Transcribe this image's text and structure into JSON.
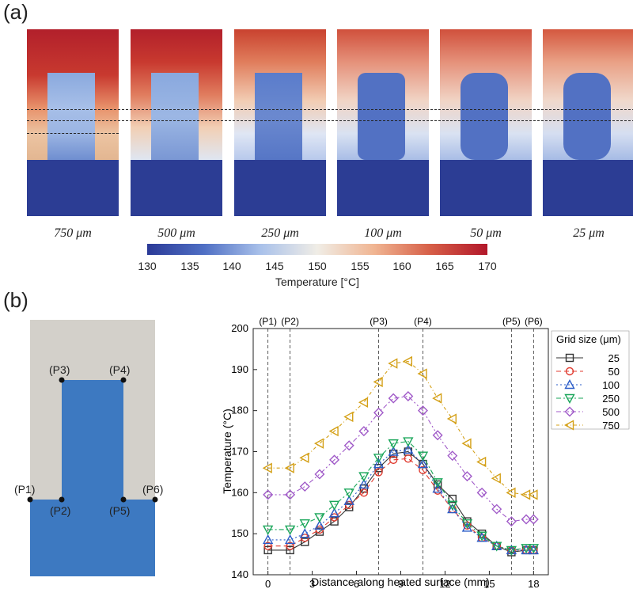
{
  "panel_a": {
    "label": "(a)",
    "grid_labels": [
      "750 μm",
      "500 μm",
      "250 μm",
      "100 μm",
      "50 μm",
      "25 μm"
    ],
    "colorbar": {
      "ticks": [
        "130",
        "135",
        "140",
        "145",
        "150",
        "155",
        "160",
        "165",
        "170"
      ],
      "title": "Temperature [°C]"
    }
  },
  "panel_b": {
    "label": "(b)",
    "points": [
      "(P1)",
      "(P2)",
      "(P3)",
      "(P4)",
      "(P5)",
      "(P6)"
    ]
  },
  "chart_data": {
    "type": "line",
    "xlabel": "Distance along heated surface (mm)",
    "ylabel": "Temperature (°C)",
    "xlim": [
      -1,
      19
    ],
    "ylim": [
      140,
      200
    ],
    "xticks": [
      0,
      3,
      6,
      9,
      12,
      15,
      18
    ],
    "yticks": [
      140,
      150,
      160,
      170,
      180,
      190,
      200
    ],
    "point_positions": [
      {
        "label": "(P1)",
        "x": 0
      },
      {
        "label": "(P2)",
        "x": 1.5
      },
      {
        "label": "(P3)",
        "x": 7.5
      },
      {
        "label": "(P4)",
        "x": 10.5
      },
      {
        "label": "(P5)",
        "x": 16.5
      },
      {
        "label": "(P6)",
        "x": 18
      }
    ],
    "legend_title": "Grid size (μm)",
    "legend_position": "top-right",
    "x": [
      0,
      1.5,
      2.5,
      3.5,
      4.5,
      5.5,
      6.5,
      7.5,
      8.5,
      9.5,
      10.5,
      11.5,
      12.5,
      13.5,
      14.5,
      15.5,
      16.5,
      17.5,
      18
    ],
    "series": [
      {
        "name": "25",
        "color": "#333333",
        "marker": "square",
        "dash": "none",
        "values": [
          146,
          146,
          148,
          150.5,
          153,
          156.5,
          161,
          166,
          169.5,
          170,
          167,
          162,
          158.5,
          153,
          150,
          147,
          145.5,
          146,
          146
        ]
      },
      {
        "name": "50",
        "color": "#e03c31",
        "marker": "circle",
        "dash": "6,4",
        "values": [
          147,
          147,
          149,
          151,
          154,
          157,
          160,
          165,
          168,
          168.3,
          165.5,
          160.5,
          156,
          152,
          149,
          147,
          146,
          146,
          146
        ]
      },
      {
        "name": "100",
        "color": "#2b5cc8",
        "marker": "triangle-up",
        "dash": "2,3",
        "values": [
          148.5,
          148.5,
          150,
          152,
          155,
          158,
          162,
          167,
          170,
          170.5,
          167,
          161,
          156,
          151.5,
          149,
          147,
          146,
          146,
          146
        ]
      },
      {
        "name": "250",
        "color": "#1aa65a",
        "marker": "triangle-down",
        "dash": "6,3,2,3",
        "values": [
          151,
          151,
          152.5,
          154,
          157,
          160,
          164,
          168.5,
          172,
          172.5,
          169,
          162.5,
          157,
          152.5,
          149.5,
          147,
          146,
          146.5,
          146.5
        ]
      },
      {
        "name": "500",
        "color": "#a05ac8",
        "marker": "diamond",
        "dash": "6,3,2,3,2,3",
        "values": [
          159.5,
          159.5,
          161.5,
          164.5,
          168,
          171.5,
          175,
          179.5,
          183,
          183.5,
          180,
          174,
          169,
          164,
          160,
          156,
          153,
          153.5,
          153.5
        ]
      },
      {
        "name": "750",
        "color": "#d4a017",
        "marker": "triangle-left",
        "dash": "4,3,1,3",
        "values": [
          166,
          166,
          168.5,
          172,
          175,
          178.5,
          182,
          187,
          191.5,
          192,
          189,
          183,
          178,
          172,
          167.5,
          163.5,
          160,
          159.5,
          159.5
        ]
      }
    ]
  }
}
